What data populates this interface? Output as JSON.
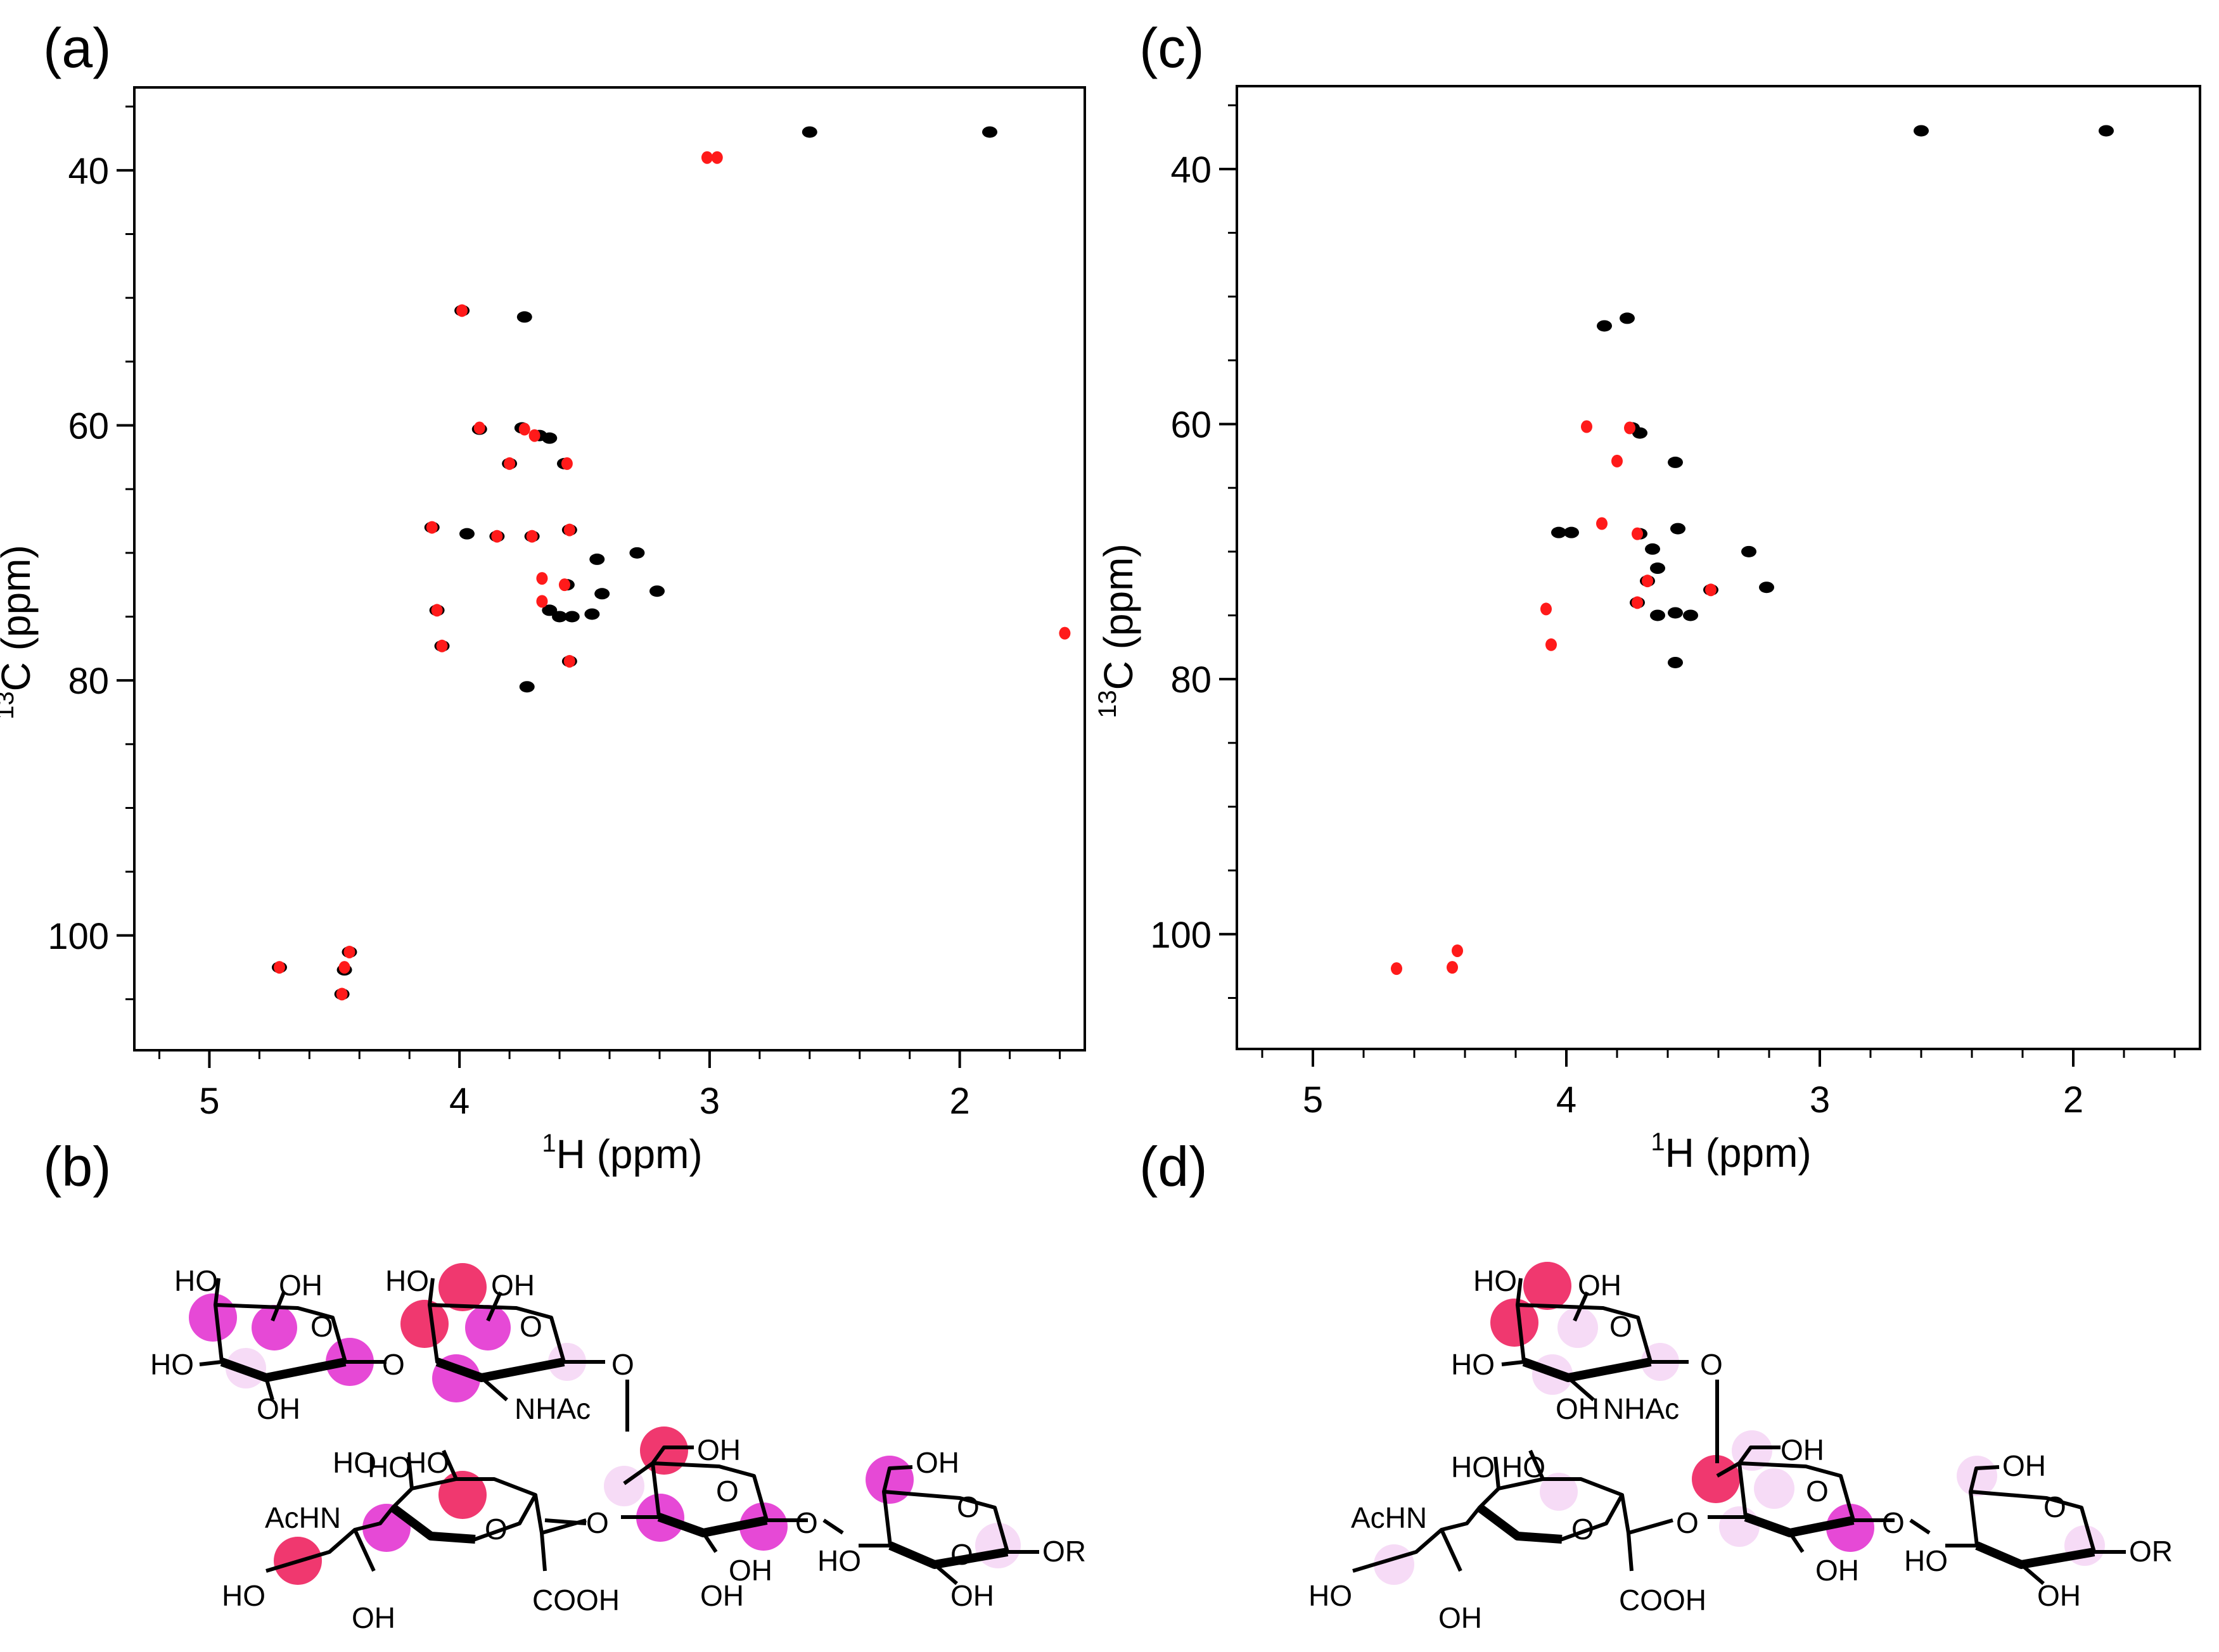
{
  "panels": {
    "a": "(a)",
    "b": "(b)",
    "c": "(c)",
    "d": "(d)"
  },
  "colors": {
    "black_peak": "#000000",
    "red_peak": "#ff1a1a",
    "strong_highlight": "#f0386f",
    "medium_highlight": "#e649d6",
    "weak_highlight": "#f6dbf6"
  },
  "chart_data": [
    {
      "panel": "(a)",
      "type": "scatter",
      "title": "",
      "xlabel": "1H (ppm)",
      "xlabel_sup": "1",
      "xlabel_rest": "H (ppm)",
      "ylabel": "13C (ppm)",
      "ylabel_sup": "13",
      "ylabel_rest": "C (ppm)",
      "xlim": [
        5.3,
        1.5
      ],
      "ylim": [
        109,
        33.5
      ],
      "x_reversed": true,
      "y_reversed": true,
      "x_ticks": [
        5,
        4,
        3,
        2
      ],
      "y_ticks": [
        40,
        60,
        80,
        100
      ],
      "series": [
        {
          "color": "#000000",
          "points": [
            [
              2.6,
              37.0
            ],
            [
              1.88,
              37.0
            ],
            [
              3.99,
              51.0
            ],
            [
              3.74,
              51.5
            ],
            [
              3.68,
              60.8
            ],
            [
              3.64,
              61.0
            ],
            [
              3.75,
              60.2
            ],
            [
              3.97,
              68.5
            ],
            [
              3.71,
              68.7
            ],
            [
              3.56,
              68.2
            ],
            [
              3.29,
              70.0
            ],
            [
              3.21,
              73.0
            ],
            [
              3.45,
              70.5
            ],
            [
              3.43,
              73.2
            ],
            [
              3.57,
              72.5
            ],
            [
              3.55,
              75.0
            ],
            [
              3.6,
              75.0
            ],
            [
              3.64,
              74.5
            ],
            [
              3.47,
              74.8
            ],
            [
              3.73,
              80.5
            ],
            [
              3.56,
              78.5
            ],
            [
              3.58,
              63.0
            ],
            [
              3.8,
              63.0
            ],
            [
              4.11,
              68.0
            ],
            [
              4.09,
              74.5
            ],
            [
              4.07,
              77.3
            ],
            [
              3.92,
              60.3
            ],
            [
              3.85,
              68.7
            ],
            [
              4.72,
              102.5
            ],
            [
              4.46,
              102.7
            ],
            [
              4.44,
              101.3
            ],
            [
              4.47,
              104.6
            ]
          ]
        },
        {
          "color": "#ff1a1a",
          "points": [
            [
              3.01,
              39.0
            ],
            [
              2.97,
              39.0
            ],
            [
              3.99,
              51.0
            ],
            [
              3.92,
              60.2
            ],
            [
              3.74,
              60.3
            ],
            [
              3.7,
              60.8
            ],
            [
              3.8,
              63.0
            ],
            [
              3.57,
              63.0
            ],
            [
              4.11,
              68.0
            ],
            [
              3.85,
              68.7
            ],
            [
              3.71,
              68.7
            ],
            [
              3.67,
              72.0
            ],
            [
              3.67,
              73.8
            ],
            [
              4.09,
              74.5
            ],
            [
              4.07,
              77.3
            ],
            [
              3.56,
              78.5
            ],
            [
              4.72,
              102.5
            ],
            [
              4.46,
              102.5
            ],
            [
              4.44,
              101.3
            ],
            [
              4.47,
              104.6
            ],
            [
              3.56,
              68.2
            ],
            [
              3.58,
              72.5
            ],
            [
              1.58,
              76.3
            ]
          ]
        }
      ]
    },
    {
      "panel": "(c)",
      "type": "scatter",
      "title": "",
      "xlabel": "1H (ppm)",
      "xlabel_sup": "1",
      "xlabel_rest": "H (ppm)",
      "ylabel": "13C (ppm)",
      "ylabel_sup": "13",
      "ylabel_rest": "C (ppm)",
      "xlim": [
        5.3,
        1.5
      ],
      "ylim": [
        109,
        33.5
      ],
      "x_reversed": true,
      "y_reversed": true,
      "x_ticks": [
        5,
        4,
        3,
        2
      ],
      "y_ticks": [
        40,
        60,
        80,
        100
      ],
      "series": [
        {
          "color": "#000000",
          "points": [
            [
              2.6,
              37.0
            ],
            [
              1.87,
              37.0
            ],
            [
              3.85,
              52.3
            ],
            [
              3.76,
              51.7
            ],
            [
              3.71,
              60.7
            ],
            [
              3.74,
              60.3
            ],
            [
              3.57,
              63.0
            ],
            [
              4.03,
              68.5
            ],
            [
              3.98,
              68.5
            ],
            [
              3.71,
              68.6
            ],
            [
              3.66,
              69.8
            ],
            [
              3.64,
              71.3
            ],
            [
              3.56,
              68.2
            ],
            [
              3.28,
              70.0
            ],
            [
              3.21,
              72.8
            ],
            [
              3.43,
              73.0
            ],
            [
              3.68,
              72.3
            ],
            [
              3.64,
              75.0
            ],
            [
              3.57,
              74.8
            ],
            [
              3.51,
              75.0
            ],
            [
              3.57,
              78.7
            ],
            [
              3.72,
              74.0
            ]
          ]
        },
        {
          "color": "#ff1a1a",
          "points": [
            [
              3.92,
              60.2
            ],
            [
              3.75,
              60.3
            ],
            [
              3.8,
              62.9
            ],
            [
              3.86,
              67.8
            ],
            [
              3.72,
              68.6
            ],
            [
              4.08,
              74.5
            ],
            [
              4.06,
              77.3
            ],
            [
              3.68,
              72.3
            ],
            [
              3.72,
              74.0
            ],
            [
              3.43,
              73.0
            ],
            [
              4.67,
              102.7
            ],
            [
              4.45,
              102.6
            ],
            [
              4.43,
              101.3
            ]
          ]
        }
      ]
    }
  ],
  "structure_b": {
    "labels": [
      "HO",
      "OH",
      "HO",
      "OH",
      "HO",
      "O",
      "O",
      "O",
      "O",
      "OH",
      "HO",
      "OH",
      "NHAc",
      "O",
      "OH",
      "HO",
      "HO",
      "AcHN",
      "O",
      "O",
      "O",
      "O",
      "OH",
      "O",
      "HO",
      "OH",
      "OH",
      "COOH",
      "HO",
      "OH",
      "OR"
    ]
  },
  "structure_d": {
    "labels": [
      "HO",
      "OH",
      "O",
      "O",
      "HO",
      "OH",
      "NHAc",
      "OH",
      "OH",
      "HO",
      "HO",
      "AcHN",
      "O",
      "O",
      "O",
      "O",
      "O",
      "HO",
      "OH",
      "OH",
      "COOH",
      "HO",
      "OH",
      "OR"
    ]
  }
}
